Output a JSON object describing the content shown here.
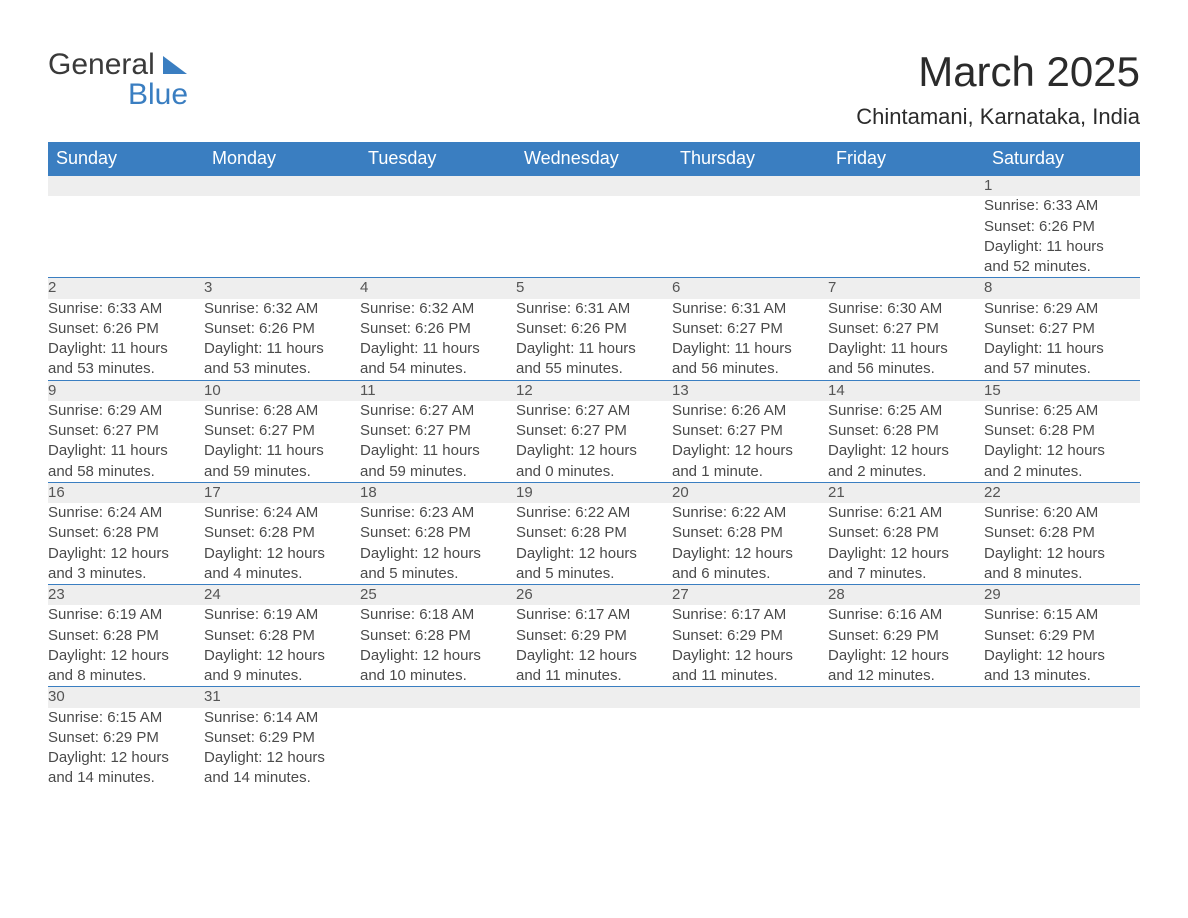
{
  "brand": {
    "general": "General",
    "blue": "Blue"
  },
  "title": "March 2025",
  "location": "Chintamani, Karnataka, India",
  "colors": {
    "header_bg": "#3a7ec1",
    "header_text": "#ffffff",
    "daynum_bg": "#eeeeee",
    "row_divider": "#3a7ec1",
    "body_text": "#4a4a4a",
    "page_bg": "#ffffff"
  },
  "weekdays": [
    "Sunday",
    "Monday",
    "Tuesday",
    "Wednesday",
    "Thursday",
    "Friday",
    "Saturday"
  ],
  "weeks": [
    [
      null,
      null,
      null,
      null,
      null,
      null,
      {
        "n": "1",
        "sr": "Sunrise: 6:33 AM",
        "ss": "Sunset: 6:26 PM",
        "d1": "Daylight: 11 hours",
        "d2": "and 52 minutes."
      }
    ],
    [
      {
        "n": "2",
        "sr": "Sunrise: 6:33 AM",
        "ss": "Sunset: 6:26 PM",
        "d1": "Daylight: 11 hours",
        "d2": "and 53 minutes."
      },
      {
        "n": "3",
        "sr": "Sunrise: 6:32 AM",
        "ss": "Sunset: 6:26 PM",
        "d1": "Daylight: 11 hours",
        "d2": "and 53 minutes."
      },
      {
        "n": "4",
        "sr": "Sunrise: 6:32 AM",
        "ss": "Sunset: 6:26 PM",
        "d1": "Daylight: 11 hours",
        "d2": "and 54 minutes."
      },
      {
        "n": "5",
        "sr": "Sunrise: 6:31 AM",
        "ss": "Sunset: 6:26 PM",
        "d1": "Daylight: 11 hours",
        "d2": "and 55 minutes."
      },
      {
        "n": "6",
        "sr": "Sunrise: 6:31 AM",
        "ss": "Sunset: 6:27 PM",
        "d1": "Daylight: 11 hours",
        "d2": "and 56 minutes."
      },
      {
        "n": "7",
        "sr": "Sunrise: 6:30 AM",
        "ss": "Sunset: 6:27 PM",
        "d1": "Daylight: 11 hours",
        "d2": "and 56 minutes."
      },
      {
        "n": "8",
        "sr": "Sunrise: 6:29 AM",
        "ss": "Sunset: 6:27 PM",
        "d1": "Daylight: 11 hours",
        "d2": "and 57 minutes."
      }
    ],
    [
      {
        "n": "9",
        "sr": "Sunrise: 6:29 AM",
        "ss": "Sunset: 6:27 PM",
        "d1": "Daylight: 11 hours",
        "d2": "and 58 minutes."
      },
      {
        "n": "10",
        "sr": "Sunrise: 6:28 AM",
        "ss": "Sunset: 6:27 PM",
        "d1": "Daylight: 11 hours",
        "d2": "and 59 minutes."
      },
      {
        "n": "11",
        "sr": "Sunrise: 6:27 AM",
        "ss": "Sunset: 6:27 PM",
        "d1": "Daylight: 11 hours",
        "d2": "and 59 minutes."
      },
      {
        "n": "12",
        "sr": "Sunrise: 6:27 AM",
        "ss": "Sunset: 6:27 PM",
        "d1": "Daylight: 12 hours",
        "d2": "and 0 minutes."
      },
      {
        "n": "13",
        "sr": "Sunrise: 6:26 AM",
        "ss": "Sunset: 6:27 PM",
        "d1": "Daylight: 12 hours",
        "d2": "and 1 minute."
      },
      {
        "n": "14",
        "sr": "Sunrise: 6:25 AM",
        "ss": "Sunset: 6:28 PM",
        "d1": "Daylight: 12 hours",
        "d2": "and 2 minutes."
      },
      {
        "n": "15",
        "sr": "Sunrise: 6:25 AM",
        "ss": "Sunset: 6:28 PM",
        "d1": "Daylight: 12 hours",
        "d2": "and 2 minutes."
      }
    ],
    [
      {
        "n": "16",
        "sr": "Sunrise: 6:24 AM",
        "ss": "Sunset: 6:28 PM",
        "d1": "Daylight: 12 hours",
        "d2": "and 3 minutes."
      },
      {
        "n": "17",
        "sr": "Sunrise: 6:24 AM",
        "ss": "Sunset: 6:28 PM",
        "d1": "Daylight: 12 hours",
        "d2": "and 4 minutes."
      },
      {
        "n": "18",
        "sr": "Sunrise: 6:23 AM",
        "ss": "Sunset: 6:28 PM",
        "d1": "Daylight: 12 hours",
        "d2": "and 5 minutes."
      },
      {
        "n": "19",
        "sr": "Sunrise: 6:22 AM",
        "ss": "Sunset: 6:28 PM",
        "d1": "Daylight: 12 hours",
        "d2": "and 5 minutes."
      },
      {
        "n": "20",
        "sr": "Sunrise: 6:22 AM",
        "ss": "Sunset: 6:28 PM",
        "d1": "Daylight: 12 hours",
        "d2": "and 6 minutes."
      },
      {
        "n": "21",
        "sr": "Sunrise: 6:21 AM",
        "ss": "Sunset: 6:28 PM",
        "d1": "Daylight: 12 hours",
        "d2": "and 7 minutes."
      },
      {
        "n": "22",
        "sr": "Sunrise: 6:20 AM",
        "ss": "Sunset: 6:28 PM",
        "d1": "Daylight: 12 hours",
        "d2": "and 8 minutes."
      }
    ],
    [
      {
        "n": "23",
        "sr": "Sunrise: 6:19 AM",
        "ss": "Sunset: 6:28 PM",
        "d1": "Daylight: 12 hours",
        "d2": "and 8 minutes."
      },
      {
        "n": "24",
        "sr": "Sunrise: 6:19 AM",
        "ss": "Sunset: 6:28 PM",
        "d1": "Daylight: 12 hours",
        "d2": "and 9 minutes."
      },
      {
        "n": "25",
        "sr": "Sunrise: 6:18 AM",
        "ss": "Sunset: 6:28 PM",
        "d1": "Daylight: 12 hours",
        "d2": "and 10 minutes."
      },
      {
        "n": "26",
        "sr": "Sunrise: 6:17 AM",
        "ss": "Sunset: 6:29 PM",
        "d1": "Daylight: 12 hours",
        "d2": "and 11 minutes."
      },
      {
        "n": "27",
        "sr": "Sunrise: 6:17 AM",
        "ss": "Sunset: 6:29 PM",
        "d1": "Daylight: 12 hours",
        "d2": "and 11 minutes."
      },
      {
        "n": "28",
        "sr": "Sunrise: 6:16 AM",
        "ss": "Sunset: 6:29 PM",
        "d1": "Daylight: 12 hours",
        "d2": "and 12 minutes."
      },
      {
        "n": "29",
        "sr": "Sunrise: 6:15 AM",
        "ss": "Sunset: 6:29 PM",
        "d1": "Daylight: 12 hours",
        "d2": "and 13 minutes."
      }
    ],
    [
      {
        "n": "30",
        "sr": "Sunrise: 6:15 AM",
        "ss": "Sunset: 6:29 PM",
        "d1": "Daylight: 12 hours",
        "d2": "and 14 minutes."
      },
      {
        "n": "31",
        "sr": "Sunrise: 6:14 AM",
        "ss": "Sunset: 6:29 PM",
        "d1": "Daylight: 12 hours",
        "d2": "and 14 minutes."
      },
      null,
      null,
      null,
      null,
      null
    ]
  ]
}
